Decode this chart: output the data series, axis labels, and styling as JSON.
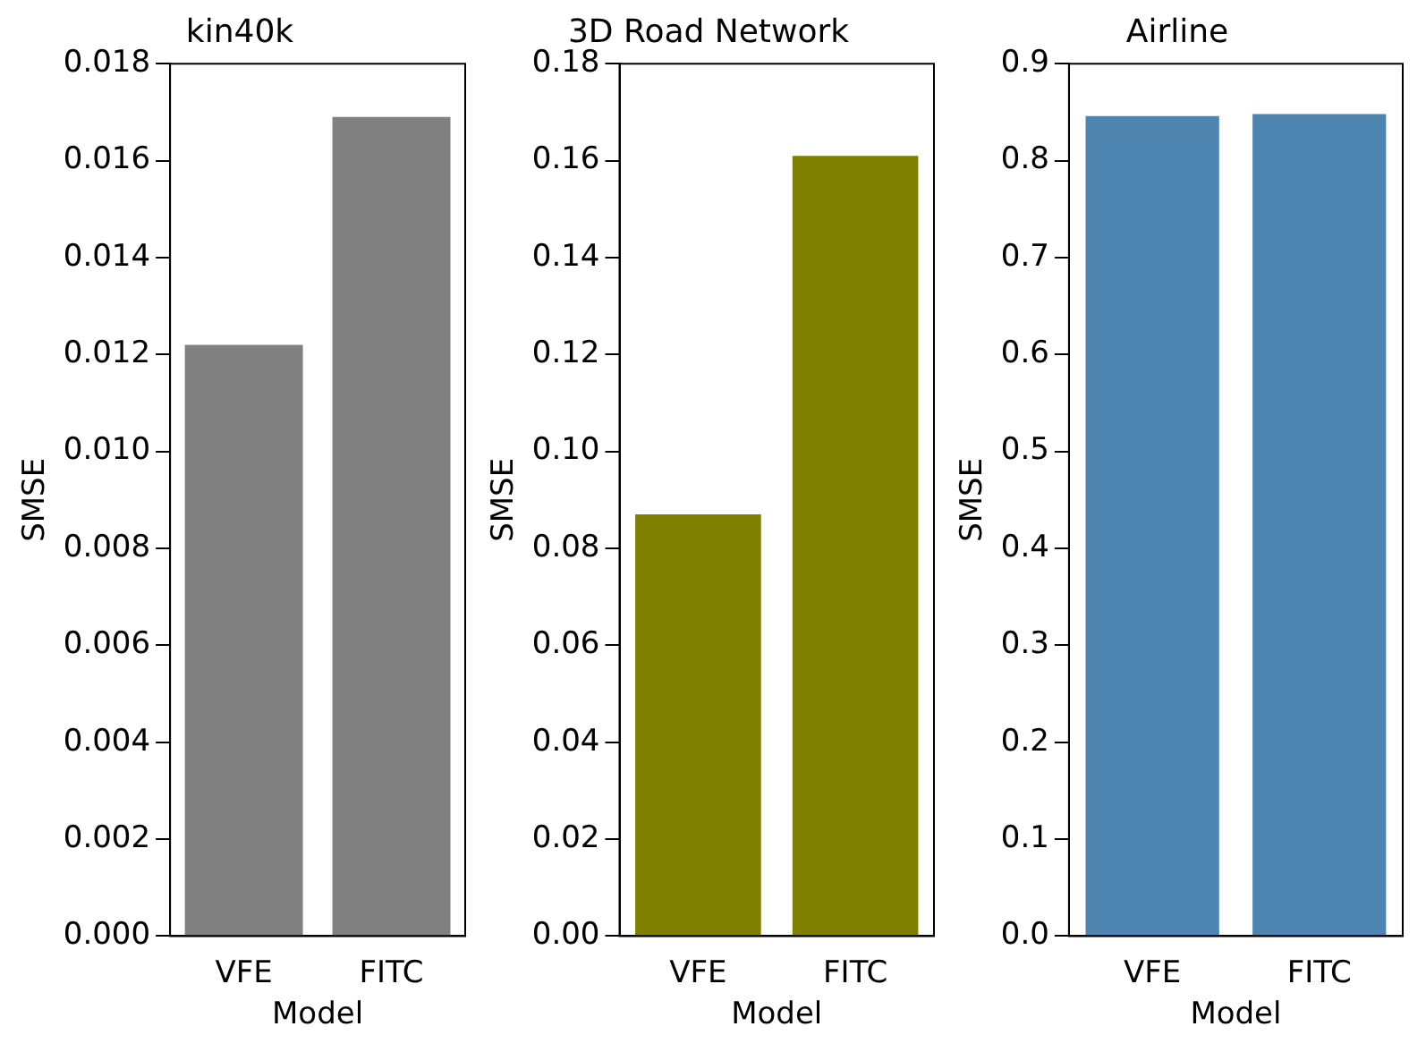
{
  "chart_data": [
    {
      "type": "bar",
      "title": "kin40k",
      "xlabel": "Model",
      "ylabel": "SMSE",
      "categories": [
        "VFE",
        "FITC"
      ],
      "values": [
        0.0122,
        0.0169
      ],
      "color": "#808080",
      "ylim": [
        0,
        0.018
      ],
      "yticks": [
        {
          "value": 0,
          "label": "0.000"
        },
        {
          "value": 0.002,
          "label": "0.002"
        },
        {
          "value": 0.004,
          "label": "0.004"
        },
        {
          "value": 0.006,
          "label": "0.006"
        },
        {
          "value": 0.008,
          "label": "0.008"
        },
        {
          "value": 0.01,
          "label": "0.010"
        },
        {
          "value": 0.012,
          "label": "0.012"
        },
        {
          "value": 0.014,
          "label": "0.014"
        },
        {
          "value": 0.016,
          "label": "0.016"
        },
        {
          "value": 0.018,
          "label": "0.018"
        }
      ],
      "grid": false
    },
    {
      "type": "bar",
      "title": "3D Road Network",
      "xlabel": "Model",
      "ylabel": "SMSE",
      "categories": [
        "VFE",
        "FITC"
      ],
      "values": [
        0.087,
        0.161
      ],
      "color": "#808000",
      "ylim": [
        0,
        0.18
      ],
      "yticks": [
        {
          "value": 0,
          "label": "0.00"
        },
        {
          "value": 0.02,
          "label": "0.02"
        },
        {
          "value": 0.04,
          "label": "0.04"
        },
        {
          "value": 0.06,
          "label": "0.06"
        },
        {
          "value": 0.08,
          "label": "0.08"
        },
        {
          "value": 0.1,
          "label": "0.10"
        },
        {
          "value": 0.12,
          "label": "0.12"
        },
        {
          "value": 0.14,
          "label": "0.14"
        },
        {
          "value": 0.16,
          "label": "0.16"
        },
        {
          "value": 0.18,
          "label": "0.18"
        }
      ],
      "grid": false
    },
    {
      "type": "bar",
      "title": "Airline",
      "xlabel": "Model",
      "ylabel": "SMSE",
      "categories": [
        "VFE",
        "FITC"
      ],
      "values": [
        0.846,
        0.848
      ],
      "color": "#4e84b0",
      "ylim": [
        0,
        0.9
      ],
      "yticks": [
        {
          "value": 0,
          "label": "0.0"
        },
        0.1,
        0.2,
        0.3,
        0.4,
        0.5,
        0.6,
        0.7,
        0.8,
        0.9
      ],
      "grid": false
    }
  ]
}
